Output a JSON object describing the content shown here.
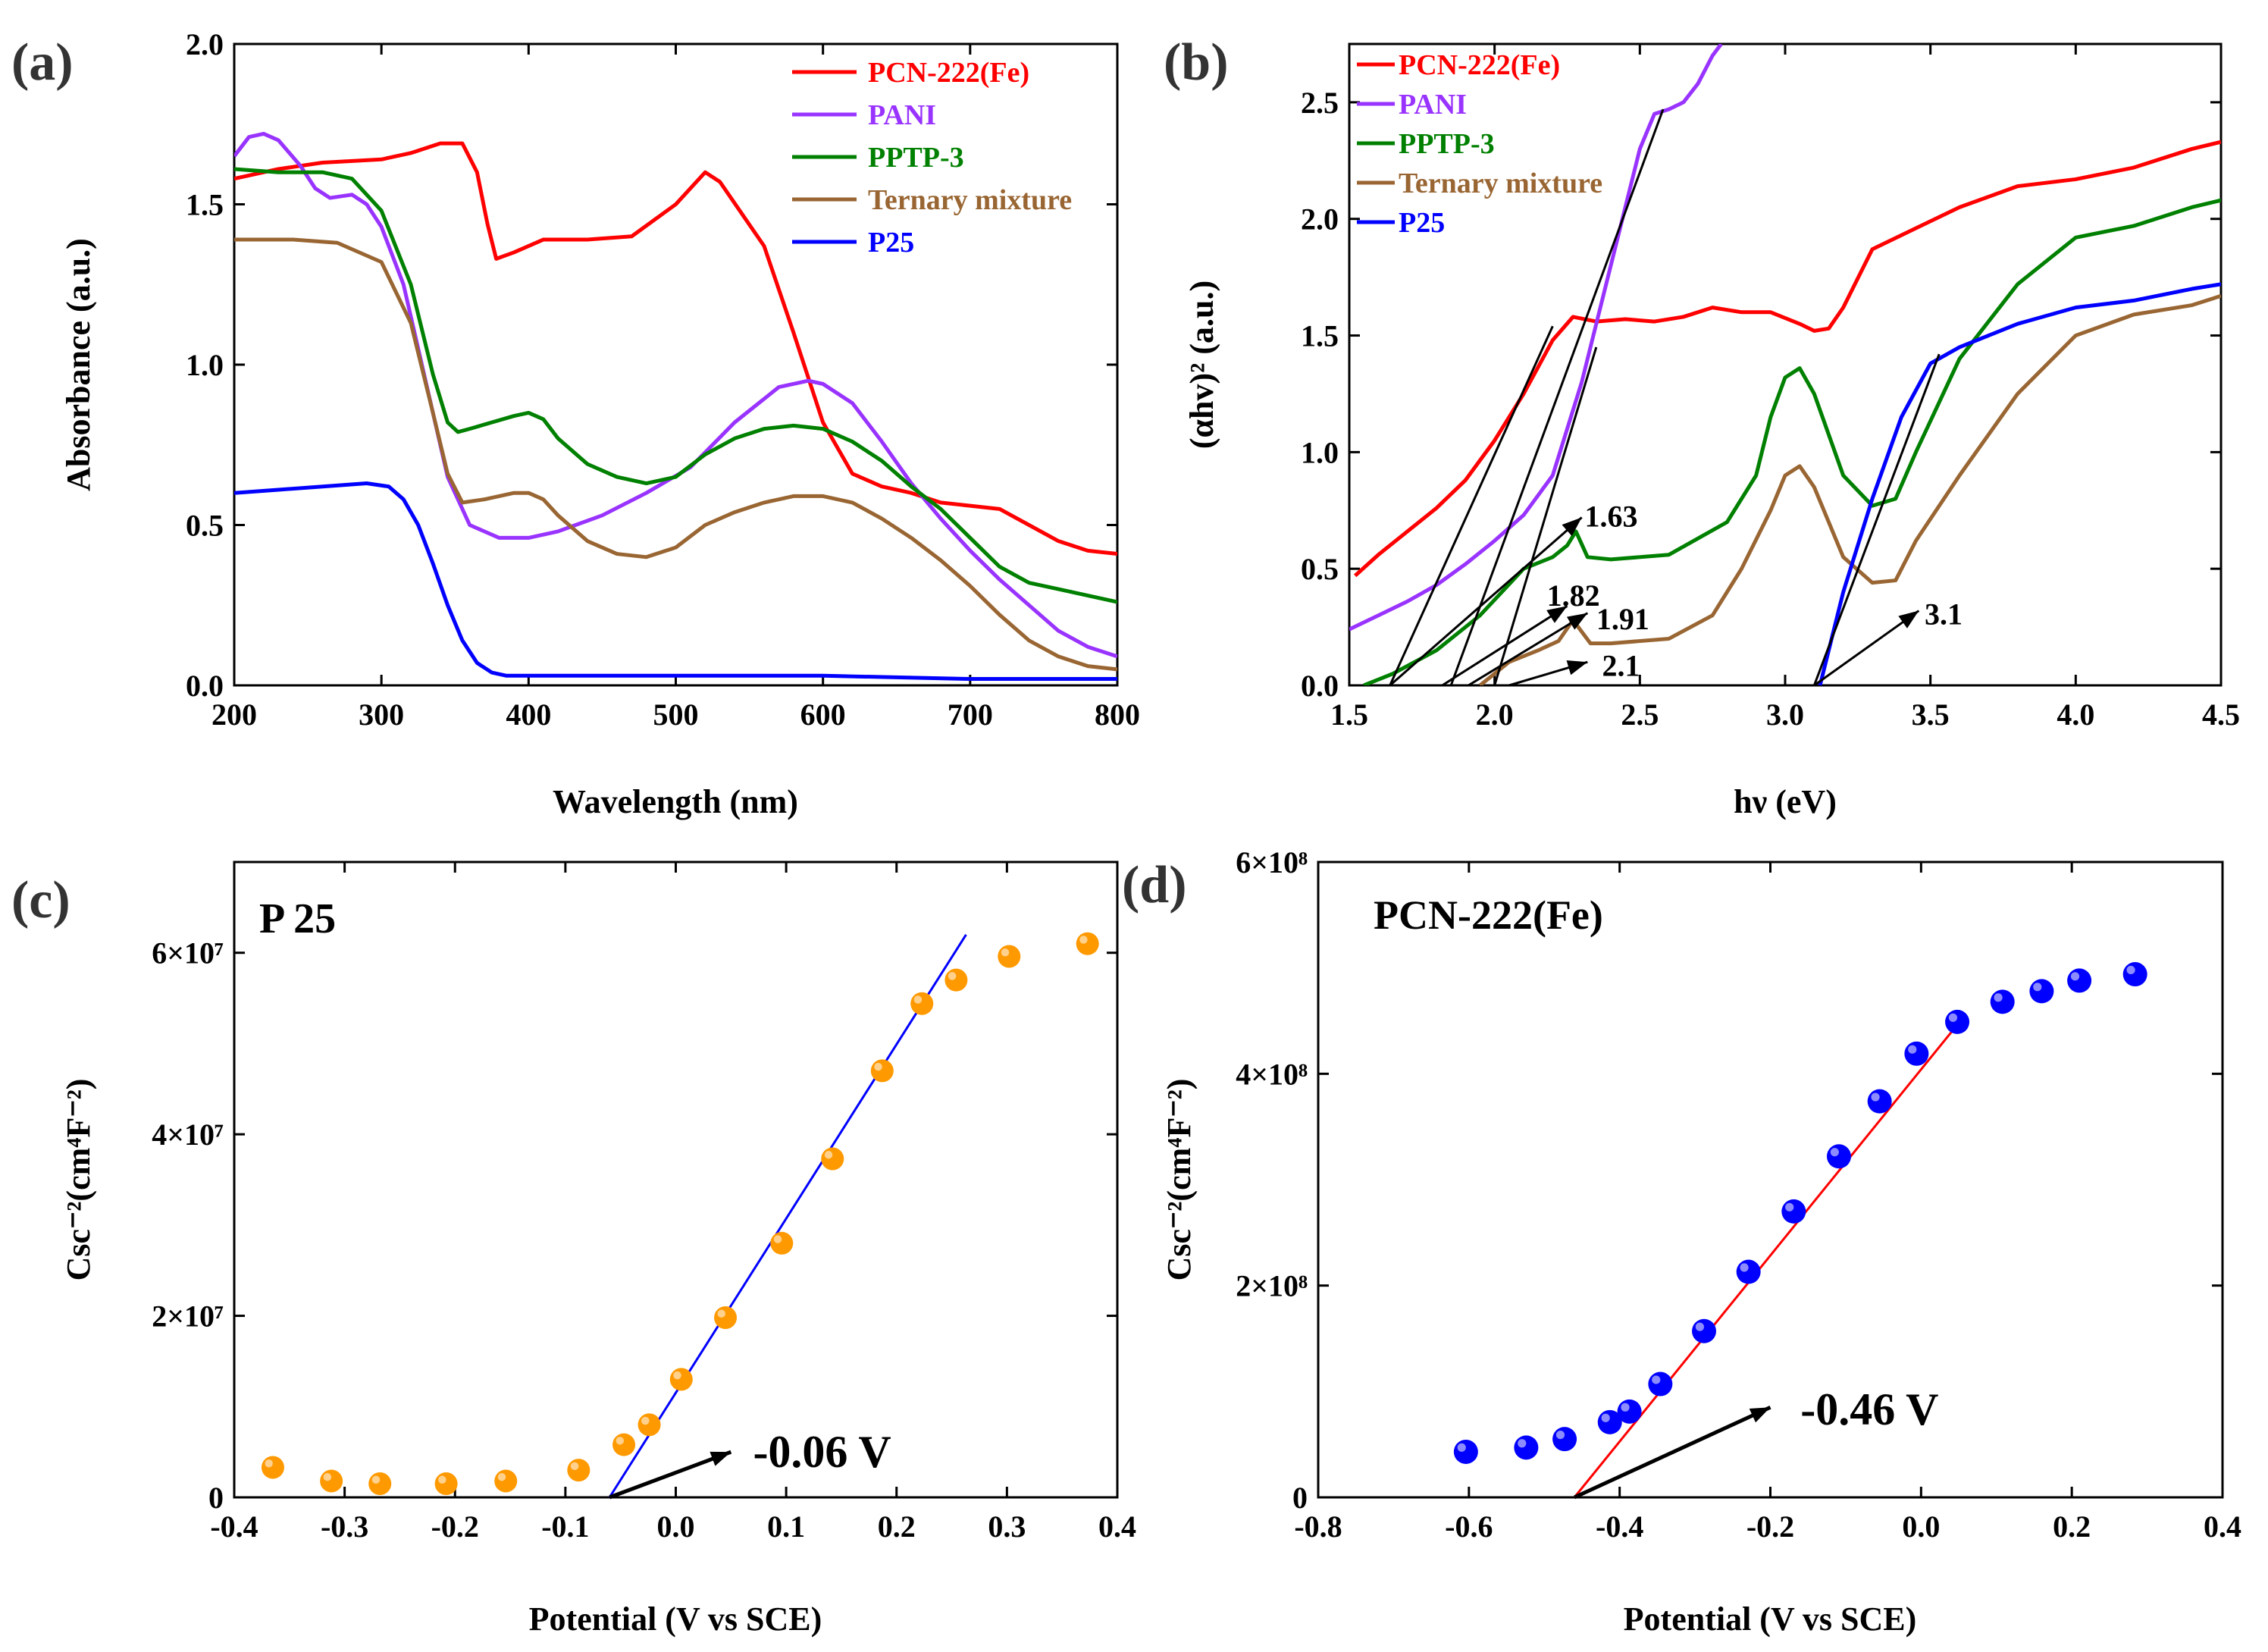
{
  "chart_data": [
    {
      "panel": "(a)",
      "type": "line",
      "xlabel": "Wavelength (nm)",
      "ylabel": "Absorbance (a.u.)",
      "xlim": [
        200,
        800
      ],
      "ylim": [
        0.0,
        2.0
      ],
      "xticks": [
        "200",
        "300",
        "400",
        "500",
        "600",
        "700",
        "800"
      ],
      "yticks": [
        "0.0",
        "0.5",
        "1.0",
        "1.5",
        "2.0"
      ],
      "legend_position": "top-right",
      "series": [
        {
          "name": "PCN-222(Fe)",
          "color": "#ff0000",
          "x": [
            200,
            230,
            260,
            300,
            320,
            340,
            355,
            365,
            372,
            378,
            390,
            410,
            440,
            470,
            500,
            510,
            520,
            530,
            545,
            560,
            580,
            600,
            620,
            640,
            660,
            680,
            700,
            720,
            740,
            760,
            780,
            800
          ],
          "y": [
            1.58,
            1.61,
            1.63,
            1.64,
            1.66,
            1.69,
            1.69,
            1.6,
            1.44,
            1.33,
            1.35,
            1.39,
            1.39,
            1.4,
            1.5,
            1.55,
            1.6,
            1.57,
            1.47,
            1.37,
            1.1,
            0.82,
            0.66,
            0.62,
            0.6,
            0.57,
            0.56,
            0.55,
            0.5,
            0.45,
            0.42,
            0.41
          ]
        },
        {
          "name": "PANI",
          "color": "#9933ff",
          "x": [
            200,
            210,
            220,
            230,
            245,
            255,
            265,
            280,
            290,
            300,
            315,
            330,
            345,
            360,
            380,
            400,
            420,
            450,
            480,
            510,
            540,
            570,
            590,
            600,
            620,
            640,
            660,
            680,
            700,
            720,
            740,
            760,
            780,
            800
          ],
          "y": [
            1.65,
            1.71,
            1.72,
            1.7,
            1.62,
            1.55,
            1.52,
            1.53,
            1.5,
            1.43,
            1.25,
            0.95,
            0.65,
            0.5,
            0.46,
            0.46,
            0.48,
            0.53,
            0.6,
            0.68,
            0.82,
            0.93,
            0.95,
            0.94,
            0.88,
            0.76,
            0.63,
            0.52,
            0.42,
            0.33,
            0.25,
            0.17,
            0.12,
            0.09
          ]
        },
        {
          "name": "PPTP-3",
          "color": "#008000",
          "x": [
            200,
            230,
            260,
            280,
            300,
            320,
            335,
            345,
            352,
            360,
            375,
            390,
            400,
            410,
            420,
            440,
            460,
            480,
            500,
            520,
            540,
            560,
            580,
            600,
            620,
            640,
            660,
            680,
            700,
            720,
            740,
            760,
            780,
            800
          ],
          "y": [
            1.61,
            1.6,
            1.6,
            1.58,
            1.48,
            1.25,
            0.97,
            0.82,
            0.79,
            0.8,
            0.82,
            0.84,
            0.85,
            0.83,
            0.77,
            0.69,
            0.65,
            0.63,
            0.65,
            0.72,
            0.77,
            0.8,
            0.81,
            0.8,
            0.76,
            0.7,
            0.62,
            0.55,
            0.46,
            0.37,
            0.32,
            0.3,
            0.28,
            0.26
          ]
        },
        {
          "name": "Ternary mixture",
          "color": "#996633",
          "x": [
            200,
            240,
            270,
            300,
            320,
            335,
            345,
            355,
            370,
            390,
            400,
            410,
            420,
            440,
            460,
            480,
            500,
            520,
            540,
            560,
            580,
            600,
            620,
            640,
            660,
            680,
            700,
            720,
            740,
            760,
            780,
            800
          ],
          "y": [
            1.39,
            1.39,
            1.38,
            1.32,
            1.13,
            0.85,
            0.66,
            0.57,
            0.58,
            0.6,
            0.6,
            0.58,
            0.53,
            0.45,
            0.41,
            0.4,
            0.43,
            0.5,
            0.54,
            0.57,
            0.59,
            0.59,
            0.57,
            0.52,
            0.46,
            0.39,
            0.31,
            0.22,
            0.14,
            0.09,
            0.06,
            0.05
          ]
        },
        {
          "name": "P25",
          "color": "#0000ff",
          "x": [
            200,
            230,
            260,
            290,
            305,
            315,
            325,
            335,
            345,
            355,
            365,
            375,
            385,
            400,
            500,
            600,
            700,
            800
          ],
          "y": [
            0.6,
            0.61,
            0.62,
            0.63,
            0.62,
            0.58,
            0.5,
            0.38,
            0.25,
            0.14,
            0.07,
            0.04,
            0.03,
            0.03,
            0.03,
            0.03,
            0.02,
            0.02
          ]
        }
      ]
    },
    {
      "panel": "(b)",
      "type": "line",
      "xlabel": "hν (eV)",
      "ylabel": "(αhv)² (a.u.)",
      "xlim": [
        1.5,
        4.5
      ],
      "ylim": [
        0.0,
        2.75
      ],
      "xticks": [
        "1.5",
        "2.0",
        "2.5",
        "3.0",
        "3.5",
        "4.0",
        "4.5"
      ],
      "yticks": [
        "0.0",
        "0.5",
        "1.0",
        "1.5",
        "2.0",
        "2.5"
      ],
      "legend_position": "top-left",
      "series": [
        {
          "name": "PCN-222(Fe)",
          "color": "#ff0000",
          "x": [
            1.52,
            1.6,
            1.7,
            1.8,
            1.9,
            2.0,
            2.1,
            2.2,
            2.27,
            2.35,
            2.45,
            2.55,
            2.65,
            2.75,
            2.85,
            2.95,
            3.05,
            3.1,
            3.15,
            3.2,
            3.3,
            3.4,
            3.6,
            3.8,
            4.0,
            4.2,
            4.4,
            4.5
          ],
          "y": [
            0.47,
            0.56,
            0.66,
            0.76,
            0.88,
            1.05,
            1.25,
            1.48,
            1.58,
            1.56,
            1.57,
            1.56,
            1.58,
            1.62,
            1.6,
            1.6,
            1.55,
            1.52,
            1.53,
            1.62,
            1.87,
            1.93,
            2.05,
            2.14,
            2.17,
            2.22,
            2.3,
            2.33
          ]
        },
        {
          "name": "PANI",
          "color": "#9933ff",
          "x": [
            1.5,
            1.6,
            1.7,
            1.8,
            1.9,
            2.0,
            2.1,
            2.2,
            2.3,
            2.4,
            2.5,
            2.55,
            2.6,
            2.65,
            2.7,
            2.75,
            2.78
          ],
          "y": [
            0.24,
            0.3,
            0.36,
            0.43,
            0.52,
            0.62,
            0.73,
            0.9,
            1.3,
            1.8,
            2.3,
            2.45,
            2.47,
            2.5,
            2.58,
            2.7,
            2.75
          ]
        },
        {
          "name": "PPTP-3",
          "color": "#008000",
          "x": [
            1.55,
            1.65,
            1.8,
            1.95,
            2.1,
            2.2,
            2.25,
            2.28,
            2.32,
            2.4,
            2.6,
            2.8,
            2.9,
            2.95,
            3.0,
            3.05,
            3.1,
            3.2,
            3.3,
            3.38,
            3.45,
            3.6,
            3.8,
            4.0,
            4.2,
            4.4,
            4.5
          ],
          "y": [
            0.0,
            0.05,
            0.15,
            0.3,
            0.5,
            0.55,
            0.6,
            0.66,
            0.55,
            0.54,
            0.56,
            0.7,
            0.9,
            1.15,
            1.32,
            1.36,
            1.25,
            0.9,
            0.77,
            0.8,
            1.0,
            1.4,
            1.72,
            1.92,
            1.97,
            2.05,
            2.08
          ]
        },
        {
          "name": "Ternary mixture",
          "color": "#996633",
          "x": [
            1.95,
            2.05,
            2.15,
            2.22,
            2.27,
            2.33,
            2.4,
            2.6,
            2.75,
            2.85,
            2.95,
            3.0,
            3.05,
            3.1,
            3.2,
            3.3,
            3.38,
            3.45,
            3.6,
            3.8,
            4.0,
            4.2,
            4.4,
            4.5
          ],
          "y": [
            0.0,
            0.1,
            0.15,
            0.19,
            0.28,
            0.18,
            0.18,
            0.2,
            0.3,
            0.5,
            0.75,
            0.9,
            0.94,
            0.85,
            0.55,
            0.44,
            0.45,
            0.62,
            0.9,
            1.25,
            1.5,
            1.59,
            1.63,
            1.67
          ]
        },
        {
          "name": "P25",
          "color": "#0000ff",
          "x": [
            3.12,
            3.2,
            3.3,
            3.4,
            3.5,
            3.6,
            3.8,
            4.0,
            4.2,
            4.4,
            4.5
          ],
          "y": [
            0.0,
            0.4,
            0.8,
            1.15,
            1.38,
            1.45,
            1.55,
            1.62,
            1.65,
            1.7,
            1.72
          ]
        }
      ],
      "tangent_lines": [
        {
          "x1": 1.64,
          "y1": 0.0,
          "x2": 2.2,
          "y2": 1.54
        },
        {
          "x1": 1.85,
          "y1": 0.0,
          "x2": 2.58,
          "y2": 2.47
        },
        {
          "x1": 2.0,
          "y1": 0.0,
          "x2": 2.35,
          "y2": 1.45
        },
        {
          "x1": 3.1,
          "y1": 0.0,
          "x2": 3.53,
          "y2": 1.42
        }
      ],
      "annotations": [
        {
          "text": "1.63",
          "x_start": 1.64,
          "y_start": 0.0,
          "x_end": 2.3,
          "y_end": 0.72,
          "lx": 2.31,
          "ly": 0.72
        },
        {
          "text": "1.82",
          "x_start": 1.82,
          "y_start": 0.0,
          "x_end": 2.25,
          "y_end": 0.34,
          "lx": 2.18,
          "ly": 0.38
        },
        {
          "text": "1.91",
          "x_start": 1.91,
          "y_start": 0.0,
          "x_end": 2.32,
          "y_end": 0.31,
          "lx": 2.35,
          "ly": 0.28
        },
        {
          "text": "2.1",
          "x_start": 2.05,
          "y_start": 0.0,
          "x_end": 2.32,
          "y_end": 0.1,
          "lx": 2.37,
          "ly": 0.08
        },
        {
          "text": "3.1",
          "x_start": 3.1,
          "y_start": 0.0,
          "x_end": 3.46,
          "y_end": 0.32,
          "lx": 3.48,
          "ly": 0.3
        }
      ]
    },
    {
      "panel": "(c)",
      "type": "scatter",
      "label": "P 25",
      "xlabel": "Potential (V vs SCE)",
      "ylabel": "Csc⁻²(cm⁴F⁻²)",
      "xlim": [
        -0.4,
        0.4
      ],
      "ylim": [
        0,
        70000000
      ],
      "xticks": [
        "-0.4",
        "-0.3",
        "-0.2",
        "-0.1",
        "0.0",
        "0.1",
        "0.2",
        "0.3",
        "0.4"
      ],
      "yticks": [
        "0",
        "2×10⁷",
        "4×10⁷",
        "6×10⁷"
      ],
      "marker_color": "#ff9900",
      "x": [
        -0.365,
        -0.312,
        -0.268,
        -0.208,
        -0.154,
        -0.088,
        -0.047,
        -0.024,
        0.005,
        0.045,
        0.096,
        0.142,
        0.187,
        0.223,
        0.254,
        0.302,
        0.373
      ],
      "y": [
        3300000,
        1800000,
        1500000,
        1500000,
        1800000,
        3000000,
        5800000,
        8000000,
        13000000,
        19800000,
        28000000,
        37300000,
        47000000,
        54400000,
        57000000,
        59600000,
        61000000
      ],
      "fit_line": {
        "color": "#0000ff",
        "x1": -0.06,
        "y1": 0,
        "x2": 0.263,
        "y2": 62000000
      },
      "annotation": {
        "text": "-0.06 V",
        "x_start": -0.06,
        "y_start": 0,
        "x_end": 0.05,
        "y_end": 5000000,
        "lx": 0.07,
        "ly": 5000000
      }
    },
    {
      "panel": "(d)",
      "type": "scatter",
      "label": "PCN-222(Fe)",
      "xlabel": "Potential (V vs SCE)",
      "ylabel": "Csc⁻²(cm⁴F⁻²)",
      "xlim": [
        -0.8,
        0.4
      ],
      "ylim": [
        0,
        600000000
      ],
      "xticks": [
        "-0.8",
        "-0.6",
        "-0.4",
        "-0.2",
        "0.0",
        "0.2",
        "0.4"
      ],
      "yticks": [
        "0",
        "2×10⁸",
        "4×10⁸",
        "6×10⁸"
      ],
      "marker_color": "#0000ff",
      "x": [
        -0.604,
        -0.524,
        -0.473,
        -0.413,
        -0.387,
        -0.346,
        -0.288,
        -0.229,
        -0.169,
        -0.109,
        -0.055,
        -0.006,
        0.048,
        0.108,
        0.16,
        0.21,
        0.284
      ],
      "y": [
        43000000,
        47000000,
        55000000,
        71000000,
        81000000,
        107000000,
        157000000,
        213000000,
        270000000,
        322000000,
        374000000,
        419000000,
        449000000,
        468000000,
        478000000,
        488000000,
        494000000
      ],
      "fit_line": {
        "color": "#ff0000",
        "x1": -0.46,
        "y1": 0,
        "x2": 0.05,
        "y2": 448000000
      },
      "annotation": {
        "text": "-0.46 V",
        "x_start": -0.46,
        "y_start": 0,
        "x_end": -0.2,
        "y_end": 85000000,
        "lx": -0.16,
        "ly": 83000000
      }
    }
  ]
}
